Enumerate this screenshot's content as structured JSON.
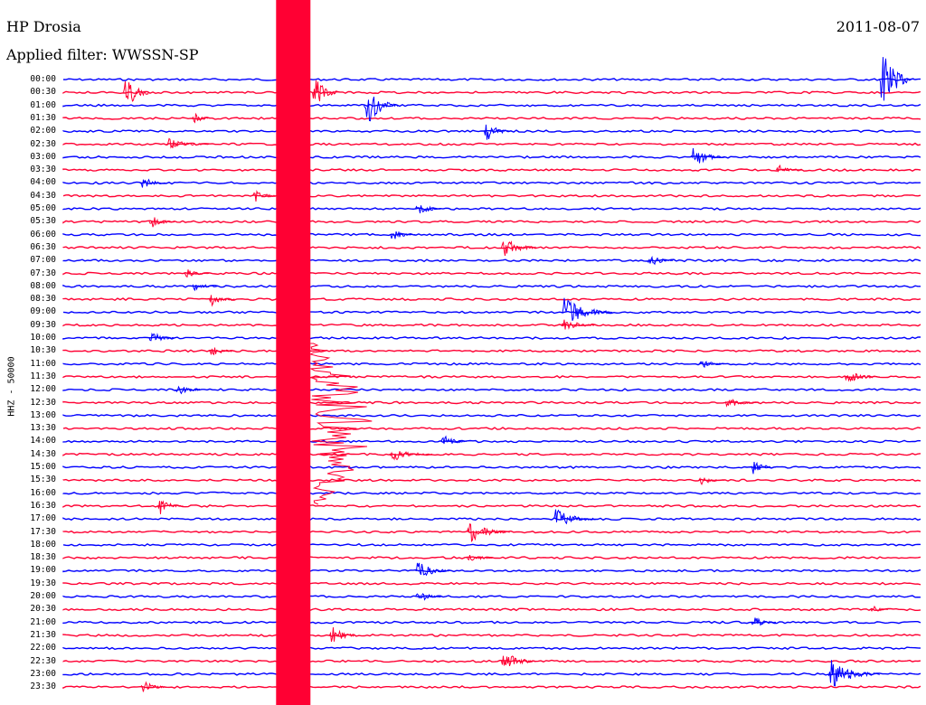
{
  "header": {
    "station": "HP Drosia",
    "filter": "Applied filter: WWSSN-SP",
    "date": "2011-08-07"
  },
  "colors": {
    "trace_a": "#0000ff",
    "trace_b": "#ff0033",
    "background": "#ffffff"
  },
  "chart_data": {
    "type": "line",
    "title": "HP Drosia",
    "ylabel": "HHZ - 50000",
    "row_labels": [
      "00:00",
      "00:30",
      "01:00",
      "01:30",
      "02:00",
      "02:30",
      "03:00",
      "03:30",
      "04:00",
      "04:30",
      "05:00",
      "05:30",
      "06:00",
      "06:30",
      "07:00",
      "07:30",
      "08:00",
      "08:30",
      "09:00",
      "09:30",
      "10:00",
      "10:30",
      "11:00",
      "11:30",
      "12:00",
      "12:30",
      "13:00",
      "13:30",
      "14:00",
      "14:30",
      "15:00",
      "15:30",
      "16:00",
      "16:30",
      "17:00",
      "17:30",
      "18:00",
      "18:30",
      "19:00",
      "19:30",
      "20:00",
      "20:30",
      "21:00",
      "21:30",
      "22:00",
      "22:30",
      "23:00",
      "23:30"
    ],
    "row_colors": [
      "blue",
      "red"
    ],
    "events": [
      {
        "row": 0,
        "x": 0.95,
        "amp": 9,
        "dur": 0.04
      },
      {
        "row": 1,
        "x": 0.07,
        "amp": 6,
        "dur": 0.03
      },
      {
        "row": 1,
        "x": 0.29,
        "amp": 5,
        "dur": 0.03
      },
      {
        "row": 2,
        "x": 0.35,
        "amp": 6,
        "dur": 0.04
      },
      {
        "row": 3,
        "x": 0.15,
        "amp": 2,
        "dur": 0.02
      },
      {
        "row": 4,
        "x": 0.49,
        "amp": 3,
        "dur": 0.03
      },
      {
        "row": 5,
        "x": 0.12,
        "amp": 1.5,
        "dur": 0.05
      },
      {
        "row": 6,
        "x": 0.73,
        "amp": 3,
        "dur": 0.04
      },
      {
        "row": 7,
        "x": 0.83,
        "amp": 1.5,
        "dur": 0.03
      },
      {
        "row": 8,
        "x": 0.09,
        "amp": 2,
        "dur": 0.03
      },
      {
        "row": 9,
        "x": 0.22,
        "amp": 2,
        "dur": 0.03
      },
      {
        "row": 10,
        "x": 0.41,
        "amp": 2,
        "dur": 0.03
      },
      {
        "row": 11,
        "x": 0.1,
        "amp": 2,
        "dur": 0.03
      },
      {
        "row": 12,
        "x": 0.38,
        "amp": 2,
        "dur": 0.03
      },
      {
        "row": 13,
        "x": 0.51,
        "amp": 3,
        "dur": 0.04
      },
      {
        "row": 14,
        "x": 0.68,
        "amp": 2,
        "dur": 0.03
      },
      {
        "row": 15,
        "x": 0.14,
        "amp": 1.5,
        "dur": 0.03
      },
      {
        "row": 16,
        "x": 0.15,
        "amp": 1.5,
        "dur": 0.03
      },
      {
        "row": 17,
        "x": 0.17,
        "amp": 2,
        "dur": 0.03
      },
      {
        "row": 18,
        "x": 0.58,
        "amp": 4,
        "dur": 0.06
      },
      {
        "row": 19,
        "x": 0.58,
        "amp": 2,
        "dur": 0.04
      },
      {
        "row": 20,
        "x": 0.1,
        "amp": 2,
        "dur": 0.03
      },
      {
        "row": 21,
        "x": 0.17,
        "amp": 1.5,
        "dur": 0.03
      },
      {
        "row": 22,
        "x": 0.74,
        "amp": 1.5,
        "dur": 0.03
      },
      {
        "row": 23,
        "x": 0.91,
        "amp": 2,
        "dur": 0.04
      },
      {
        "row": 24,
        "x": 0.13,
        "amp": 2,
        "dur": 0.03
      },
      {
        "row": 25,
        "x": 0.77,
        "amp": 1.5,
        "dur": 0.04
      },
      {
        "row": 28,
        "x": 0.44,
        "amp": 2,
        "dur": 0.03
      },
      {
        "row": 29,
        "x": 0.38,
        "amp": 2,
        "dur": 0.05
      },
      {
        "row": 30,
        "x": 0.8,
        "amp": 3,
        "dur": 0.03
      },
      {
        "row": 31,
        "x": 0.74,
        "amp": 1.5,
        "dur": 0.03
      },
      {
        "row": 33,
        "x": 0.11,
        "amp": 2.5,
        "dur": 0.03
      },
      {
        "row": 34,
        "x": 0.57,
        "amp": 3,
        "dur": 0.05
      },
      {
        "row": 35,
        "x": 0.47,
        "amp": 3,
        "dur": 0.05
      },
      {
        "row": 37,
        "x": 0.47,
        "amp": 1.5,
        "dur": 0.03
      },
      {
        "row": 38,
        "x": 0.41,
        "amp": 3,
        "dur": 0.04
      },
      {
        "row": 40,
        "x": 0.41,
        "amp": 2,
        "dur": 0.03
      },
      {
        "row": 41,
        "x": 0.94,
        "amp": 1.5,
        "dur": 0.02
      },
      {
        "row": 42,
        "x": 0.8,
        "amp": 2,
        "dur": 0.03
      },
      {
        "row": 43,
        "x": 0.31,
        "amp": 3,
        "dur": 0.03
      },
      {
        "row": 45,
        "x": 0.51,
        "amp": 3,
        "dur": 0.04
      },
      {
        "row": 46,
        "x": 0.89,
        "amp": 4,
        "dur": 0.06
      },
      {
        "row": 47,
        "x": 0.09,
        "amp": 2,
        "dur": 0.03
      }
    ],
    "big_event": {
      "row_start": 0,
      "row_end": 47,
      "x": 0.255,
      "width": 0.04
    }
  }
}
